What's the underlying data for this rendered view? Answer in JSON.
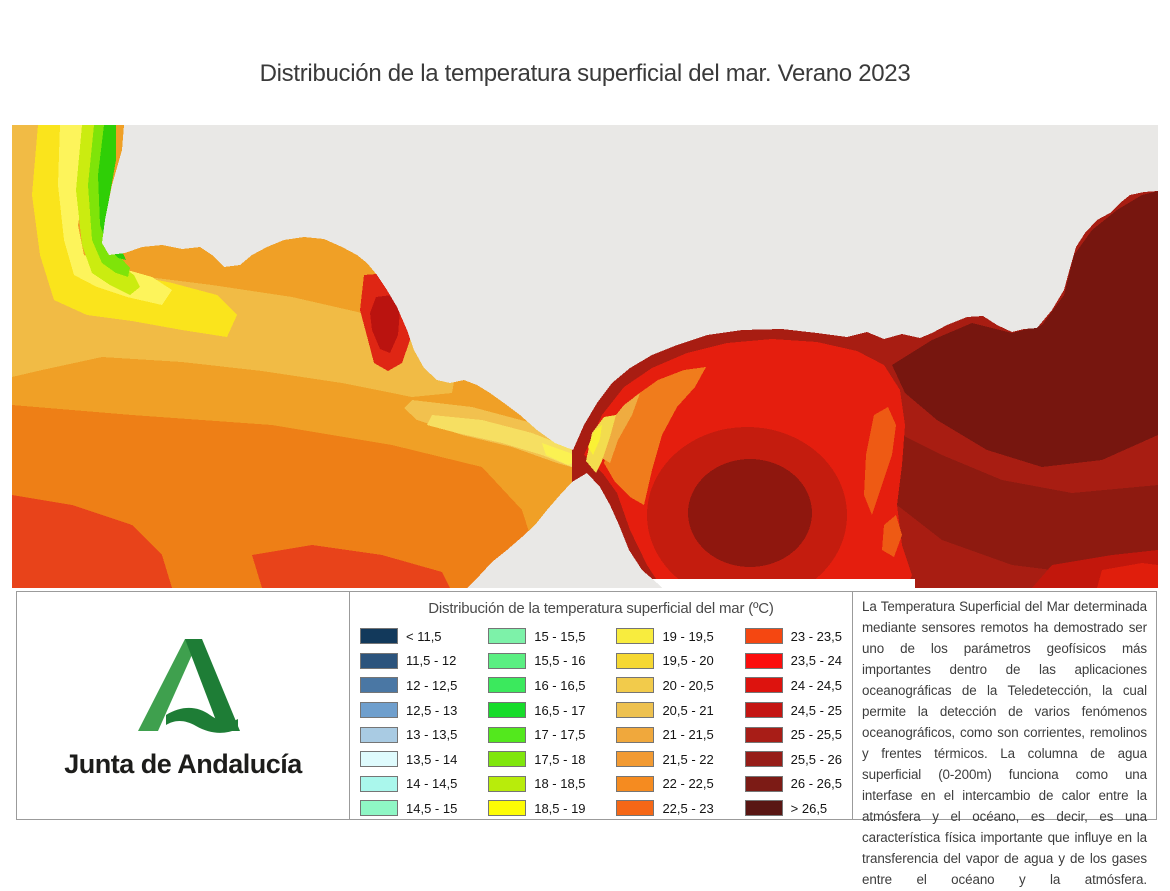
{
  "page": {
    "title": "Distribución de la temperatura superficial del mar. Verano 2023"
  },
  "map": {
    "land_color": "#e9e8e6",
    "alt": "sea-surface-temperature-raster-map-strait-of-gibraltar-alboran-sea"
  },
  "legend": {
    "title": "Distribución de la temperatura superficial del mar (ºC)",
    "entries": [
      {
        "label": "< 11,5",
        "color": "#12395b"
      },
      {
        "label": "11,5 - 12",
        "color": "#2c547d"
      },
      {
        "label": "12 - 12,5",
        "color": "#4a77a4"
      },
      {
        "label": "12,5 - 13",
        "color": "#6f9fcd"
      },
      {
        "label": "13 - 13,5",
        "color": "#a9cbe3"
      },
      {
        "label": "13,5 - 14",
        "color": "#dffbfd"
      },
      {
        "label": "14 - 14,5",
        "color": "#aaf7ec"
      },
      {
        "label": "14,5 - 15",
        "color": "#8ff7c5"
      },
      {
        "label": "15 - 15,5",
        "color": "#7df2a9"
      },
      {
        "label": "15,5 - 16",
        "color": "#5bef82"
      },
      {
        "label": "16 - 16,5",
        "color": "#3be95d"
      },
      {
        "label": "16,5 - 17",
        "color": "#17dc2b"
      },
      {
        "label": "17 - 17,5",
        "color": "#53e81d"
      },
      {
        "label": "17,5 - 18",
        "color": "#80e60d"
      },
      {
        "label": "18 - 18,5",
        "color": "#b8ec0b"
      },
      {
        "label": "18,5 - 19",
        "color": "#fdfc05"
      },
      {
        "label": "19 - 19,5",
        "color": "#f8ec3e"
      },
      {
        "label": "19,5 - 20",
        "color": "#f6d832"
      },
      {
        "label": "20 - 20,5",
        "color": "#f2cb4b"
      },
      {
        "label": "20,5 - 21",
        "color": "#eec14f"
      },
      {
        "label": "21 - 21,5",
        "color": "#f0a83c"
      },
      {
        "label": "21,5 - 22",
        "color": "#f29a32"
      },
      {
        "label": "22 - 22,5",
        "color": "#f58b20"
      },
      {
        "label": "22,5 - 23",
        "color": "#f56716"
      },
      {
        "label": "23 - 23,5",
        "color": "#f54711"
      },
      {
        "label": "23,5 - 24",
        "color": "#fb0e0d"
      },
      {
        "label": "24 - 24,5",
        "color": "#dd130e"
      },
      {
        "label": "24,5 - 25",
        "color": "#c41512"
      },
      {
        "label": "25 - 25,5",
        "color": "#a81d17"
      },
      {
        "label": "25,5 - 26",
        "color": "#961d18"
      },
      {
        "label": "26 - 26,5",
        "color": "#7c1b15"
      },
      {
        "label": "> 26,5",
        "color": "#591613"
      }
    ],
    "rows_per_column": 8
  },
  "logo": {
    "org_name": "Junta de Andalucía",
    "a_light_green": "#3fa04e",
    "a_dark_green": "#1e7d36"
  },
  "description": {
    "text": "La Temperatura Superficial del Mar determinada mediante sensores remotos ha demostrado ser uno de los parámetros geofísicos más importantes dentro de las aplicaciones oceanográficas de la Teledetección, la cual permite la detección de varios fenómenos oceanográficos, como son corrientes, remolinos y frentes térmicos. La columna de agua superficial (0-200m) funciona como una interfase en el intercambio de calor entre la atmósfera y el océano, es decir, es una característica física importante que influye en la transferencia del vapor de agua y de los gases entre el océano y la atmósfera."
  }
}
